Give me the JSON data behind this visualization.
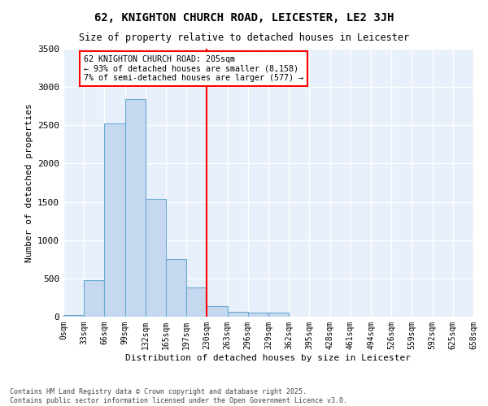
{
  "title": "62, KNIGHTON CHURCH ROAD, LEICESTER, LE2 3JH",
  "subtitle": "Size of property relative to detached houses in Leicester",
  "xlabel": "Distribution of detached houses by size in Leicester",
  "ylabel": "Number of detached properties",
  "bar_color": "#c5d8f0",
  "bar_edge_color": "#6aaad4",
  "vline_index": 6,
  "vline_color": "red",
  "annotation_text": "62 KNIGHTON CHURCH ROAD: 205sqm\n← 93% of detached houses are smaller (8,158)\n7% of semi-detached houses are larger (577) →",
  "bin_labels": [
    "0sqm",
    "33sqm",
    "66sqm",
    "99sqm",
    "132sqm",
    "165sqm",
    "197sqm",
    "230sqm",
    "263sqm",
    "296sqm",
    "329sqm",
    "362sqm",
    "395sqm",
    "428sqm",
    "461sqm",
    "494sqm",
    "526sqm",
    "559sqm",
    "592sqm",
    "625sqm",
    "658sqm"
  ],
  "values": [
    20,
    480,
    2520,
    2840,
    1540,
    750,
    380,
    135,
    65,
    50,
    50,
    5,
    0,
    0,
    0,
    0,
    0,
    0,
    0,
    0
  ],
  "ylim": [
    0,
    3500
  ],
  "yticks": [
    0,
    500,
    1000,
    1500,
    2000,
    2500,
    3000,
    3500
  ],
  "background_color": "#e8f0fb",
  "grid_color": "white",
  "footer_line1": "Contains HM Land Registry data © Crown copyright and database right 2025.",
  "footer_line2": "Contains public sector information licensed under the Open Government Licence v3.0."
}
